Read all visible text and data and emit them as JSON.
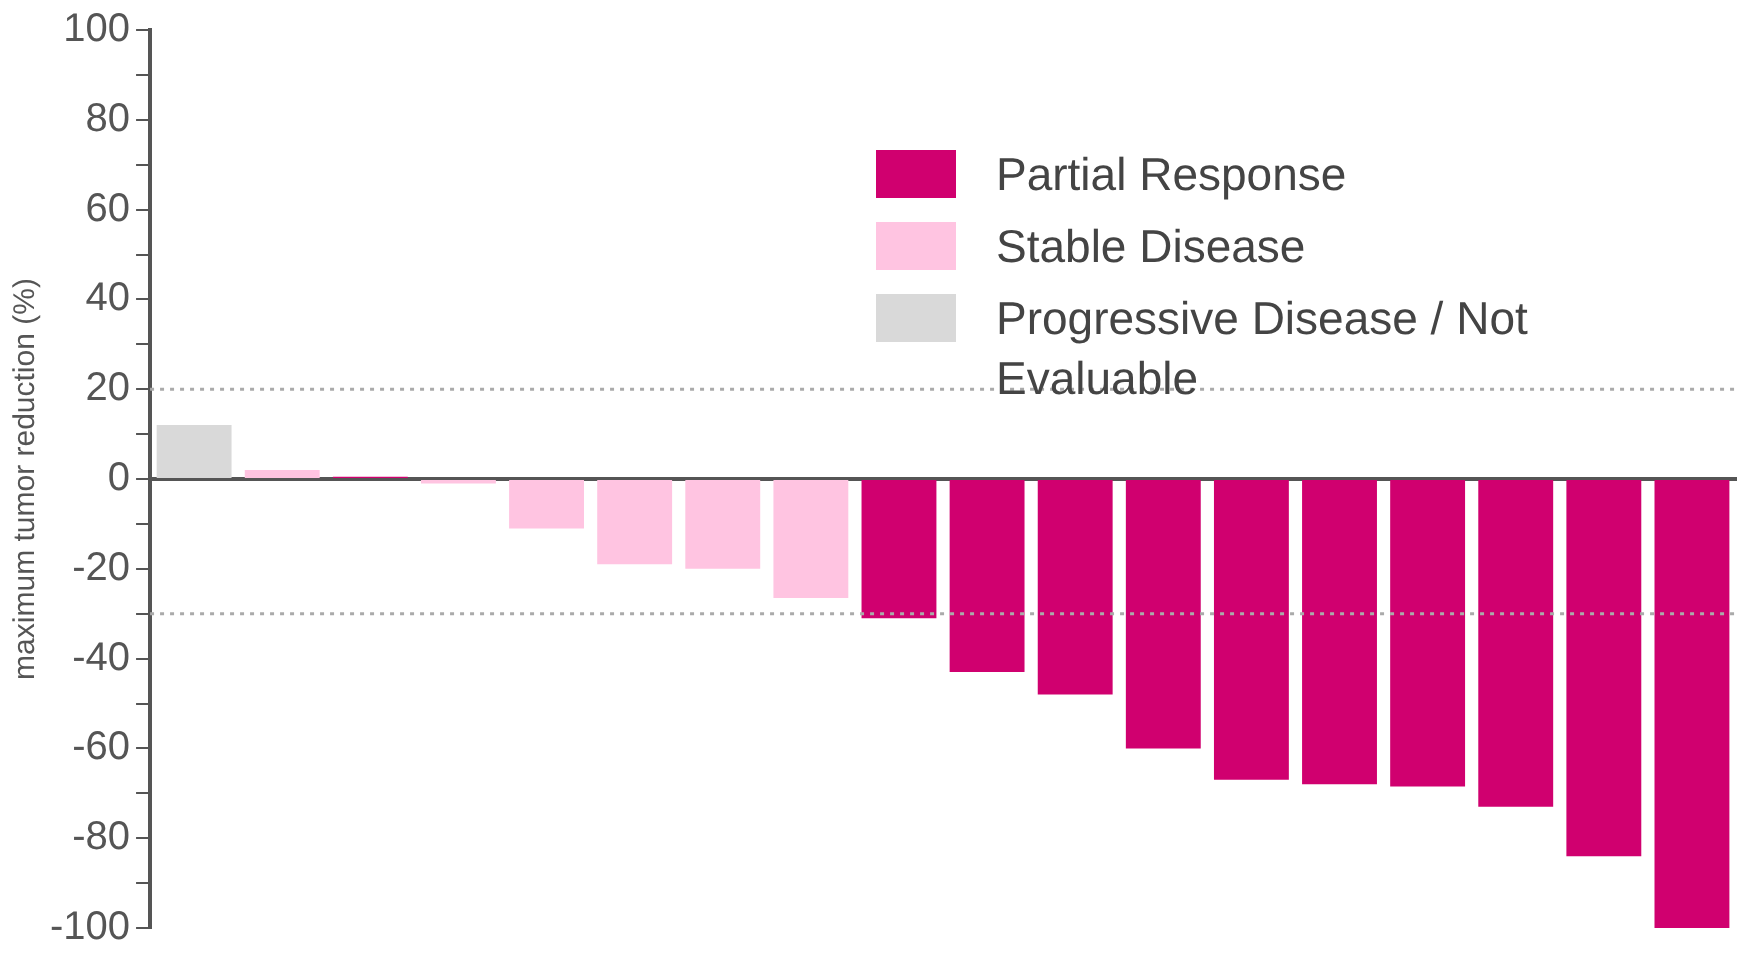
{
  "chart_data": {
    "type": "bar",
    "ylabel": "maximum tumor reduction (%)",
    "categories": [
      null,
      null,
      null,
      null,
      null,
      null,
      null,
      null,
      null,
      null,
      null,
      null,
      null,
      null,
      null,
      null,
      null,
      null
    ],
    "series": [
      {
        "name": "Partial Response",
        "color": "#d0006f",
        "values": [
          null,
          null,
          0.5,
          null,
          null,
          null,
          null,
          null,
          -31,
          -43,
          -48,
          -60,
          -67,
          -68,
          -68.5,
          -73,
          -84,
          -100
        ]
      },
      {
        "name": "Stable Disease",
        "color": "#ffc4e1",
        "values": [
          null,
          2,
          null,
          -1,
          -11,
          -19,
          -20,
          -26.5,
          null,
          null,
          null,
          null,
          null,
          null,
          null,
          null,
          null,
          null
        ]
      },
      {
        "name": "Progressive Disease / Not Evaluable",
        "color": "#d9d9d9",
        "values": [
          12,
          null,
          null,
          null,
          null,
          null,
          null,
          null,
          null,
          null,
          null,
          null,
          null,
          null,
          null,
          null,
          null,
          null
        ]
      }
    ],
    "ylim": [
      -100,
      100
    ],
    "yticks": [
      -100,
      {
        "value": -90,
        "label": null
      },
      -80,
      {
        "value": -70,
        "label": null
      },
      -60,
      {
        "value": -50,
        "label": null
      },
      -40,
      {
        "value": -30,
        "label": null
      },
      -20,
      {
        "value": -10,
        "label": null
      },
      0,
      {
        "value": 10,
        "label": null
      },
      20,
      {
        "value": 30,
        "label": null
      },
      40,
      {
        "value": 50,
        "label": null
      },
      60,
      {
        "value": 70,
        "label": null
      },
      80,
      {
        "value": 90,
        "label": null
      },
      100
    ],
    "ref_lines": [
      {
        "axis": "y",
        "value": 20,
        "color": "#aaaaaa",
        "line_style": "dotted"
      },
      {
        "axis": "y",
        "value": -30,
        "color": "#aaaaaa",
        "line_style": "dotted"
      }
    ],
    "grid": false,
    "legend": "top right",
    "tick_labels": "y"
  }
}
